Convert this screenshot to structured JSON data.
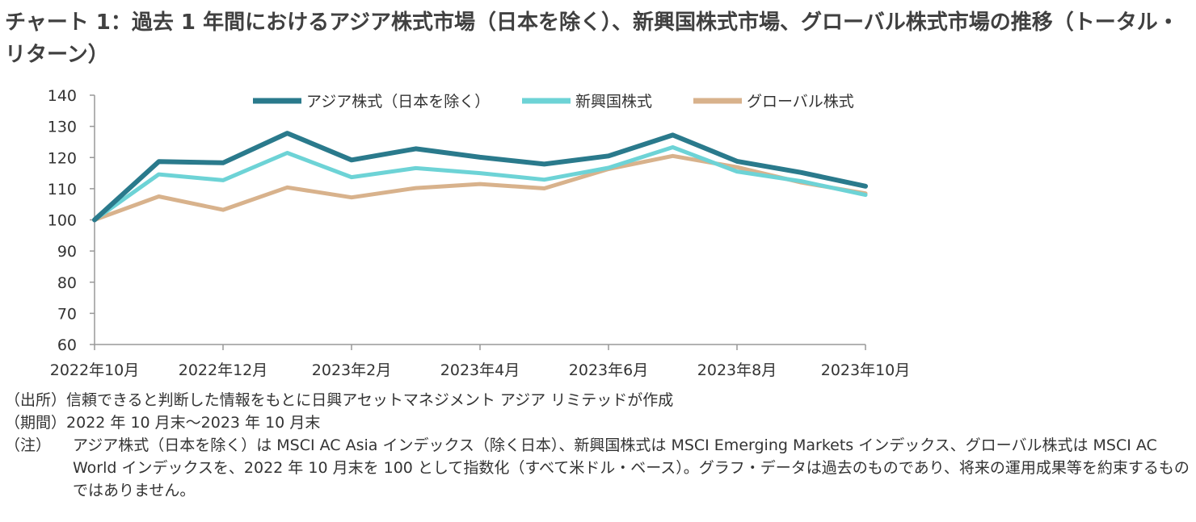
{
  "title": "チャート 1：過去 1 年間におけるアジア株式市場（日本を除く）、新興国株式市場、グローバル株式市場の推移（トータル・リターン）",
  "chart_data": {
    "type": "line",
    "x": [
      "2022-10",
      "2022-11",
      "2022-12",
      "2023-01",
      "2023-02",
      "2023-03",
      "2023-04",
      "2023-05",
      "2023-06",
      "2023-07",
      "2023-08",
      "2023-09",
      "2023-10"
    ],
    "x_tick_labels": [
      "2022年10月",
      "2022年12月",
      "2023年2月",
      "2023年4月",
      "2023年6月",
      "2023年8月",
      "2023年10月"
    ],
    "ylim": [
      60,
      140
    ],
    "y_ticks": [
      60,
      70,
      80,
      90,
      100,
      110,
      120,
      130,
      140
    ],
    "grid": false,
    "legend_position": "top-center",
    "series": [
      {
        "name": "アジア株式（日本を除く）",
        "color": "#2a7a8c",
        "values": [
          100,
          118.7,
          118.3,
          127.8,
          119.2,
          122.8,
          120.1,
          117.9,
          120.5,
          127.2,
          118.8,
          115.2,
          110.8
        ]
      },
      {
        "name": "新興国株式",
        "color": "#6dd3d6",
        "values": [
          100,
          114.6,
          112.7,
          121.5,
          113.7,
          116.6,
          115.0,
          112.9,
          116.7,
          123.3,
          115.5,
          112.4,
          108.0
        ]
      },
      {
        "name": "グローバル株式",
        "color": "#d8b28c",
        "values": [
          100,
          107.5,
          103.2,
          110.4,
          107.2,
          110.2,
          111.5,
          110.1,
          116.3,
          120.5,
          116.9,
          112.0,
          108.5
        ]
      }
    ]
  },
  "notes": {
    "source_label": "（出所）",
    "source_text": "信頼できると判断した情報をもとに日興アセットマネジメント アジア リミテッドが作成",
    "period_label": "（期間）",
    "period_text": "2022 年 10 月末～2023 年 10 月末",
    "note_label": "（注）",
    "note_text": "アジア株式（日本を除く）は MSCI AC Asia インデックス（除く日本）、新興国株式は MSCI Emerging Markets インデックス、グローバル株式は MSCI AC World インデックスを、2022 年 10 月末を 100 として指数化（すべて米ドル・ベース）。グラフ・データは過去のものであり、将来の運用成果等を約束するものではありません。"
  }
}
